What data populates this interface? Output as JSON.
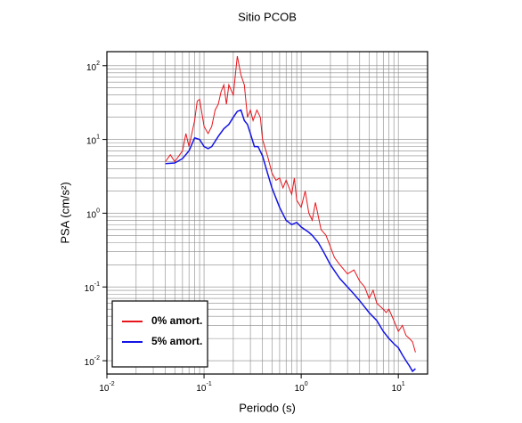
{
  "chart_data": {
    "type": "line",
    "title": "Sitio PCOB",
    "x_label": "Periodo (s)",
    "y_label": "PSA (cm/s²)",
    "log_x": true,
    "log_y": true,
    "grid": true,
    "minor_grid": true,
    "legend_position": "lower-left",
    "xlim": [
      0.01,
      20
    ],
    "ylim": [
      0.0066,
      155
    ],
    "xticks": [
      {
        "value": 0.01,
        "label": "10",
        "exponent": "-2"
      },
      {
        "value": 0.1,
        "label": "10",
        "exponent": "-1"
      },
      {
        "value": 1,
        "label": "10",
        "exponent": "0"
      },
      {
        "value": 10,
        "label": "10",
        "exponent": "1"
      }
    ],
    "yticks": [
      {
        "value": 0.01,
        "label": "10",
        "exponent": "-2"
      },
      {
        "value": 0.1,
        "label": "10",
        "exponent": "-1"
      },
      {
        "value": 1,
        "label": "10",
        "exponent": "0"
      },
      {
        "value": 10,
        "label": "10",
        "exponent": "1"
      },
      {
        "value": 100,
        "label": "10",
        "exponent": "2"
      }
    ],
    "series": [
      {
        "name": "0% amort.",
        "color": "#e8141b",
        "x": [
          0.04,
          0.045,
          0.05,
          0.06,
          0.065,
          0.07,
          0.08,
          0.085,
          0.09,
          0.1,
          0.11,
          0.12,
          0.13,
          0.14,
          0.15,
          0.16,
          0.17,
          0.18,
          0.2,
          0.22,
          0.24,
          0.26,
          0.28,
          0.3,
          0.32,
          0.35,
          0.38,
          0.4,
          0.45,
          0.5,
          0.55,
          0.6,
          0.65,
          0.7,
          0.8,
          0.85,
          0.9,
          1.0,
          1.1,
          1.2,
          1.3,
          1.4,
          1.6,
          1.8,
          2,
          2.2,
          2.5,
          3,
          3.5,
          4,
          4.5,
          5,
          5.5,
          6,
          7,
          7.5,
          8,
          9,
          10,
          11,
          12,
          13,
          14,
          15
        ],
        "values": [
          5,
          6.2,
          5,
          7,
          12,
          8,
          18,
          33,
          35,
          15,
          12,
          15,
          25,
          30,
          45,
          55,
          30,
          55,
          40,
          135,
          75,
          55,
          20,
          25,
          18,
          25,
          20,
          10,
          6,
          3.5,
          2.8,
          3,
          2.2,
          2.8,
          1.8,
          3,
          1.5,
          1.2,
          2,
          1,
          0.8,
          1.4,
          0.6,
          0.5,
          0.35,
          0.25,
          0.2,
          0.15,
          0.17,
          0.12,
          0.1,
          0.07,
          0.09,
          0.06,
          0.05,
          0.045,
          0.05,
          0.035,
          0.025,
          0.03,
          0.022,
          0.02,
          0.018,
          0.013
        ]
      },
      {
        "name": "5% amort.",
        "color": "#1414e6",
        "x": [
          0.04,
          0.05,
          0.06,
          0.07,
          0.08,
          0.09,
          0.1,
          0.11,
          0.12,
          0.14,
          0.16,
          0.18,
          0.2,
          0.22,
          0.24,
          0.26,
          0.28,
          0.3,
          0.33,
          0.36,
          0.4,
          0.45,
          0.5,
          0.6,
          0.7,
          0.8,
          0.9,
          1.0,
          1.2,
          1.3,
          1.5,
          1.7,
          2,
          2.5,
          3,
          3.5,
          4,
          5,
          6,
          7,
          8,
          9,
          10,
          11,
          12,
          13,
          14,
          15
        ],
        "values": [
          4.7,
          4.8,
          5.5,
          7,
          10.5,
          10,
          8,
          7.5,
          8,
          11,
          14,
          16,
          20,
          24,
          25,
          18,
          16,
          12,
          8,
          8,
          6,
          3.5,
          2.2,
          1.2,
          0.8,
          0.7,
          0.75,
          0.65,
          0.55,
          0.5,
          0.4,
          0.3,
          0.2,
          0.13,
          0.1,
          0.08,
          0.065,
          0.045,
          0.035,
          0.025,
          0.02,
          0.017,
          0.015,
          0.012,
          0.01,
          0.0085,
          0.0072,
          0.0078
        ]
      }
    ]
  }
}
